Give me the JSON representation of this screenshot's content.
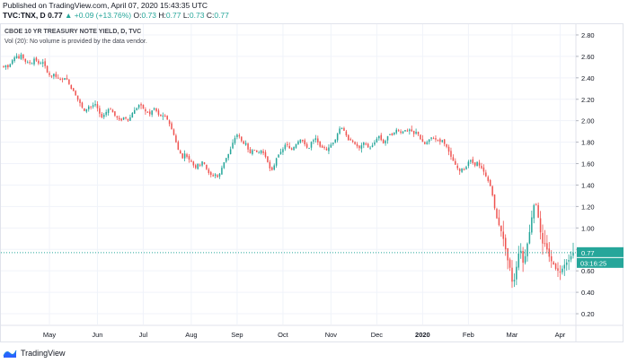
{
  "header": {
    "published": "Published on TradingView.com, April 07, 2020 15:43:35 UTC",
    "symbol_line": "TVC:TNX, D",
    "last": "0.77",
    "change": "+0.09 (+13.76%)",
    "o_label": "O:",
    "o_val": "0.73",
    "h_label": "H:",
    "h_val": "0.77",
    "l_label": "L:",
    "l_val": "0.73",
    "c_label": "C:",
    "c_val": "0.77"
  },
  "legend": {
    "title": "CBOE 10 YR TREASURY NOTE YIELD, D, TVC",
    "volume": "Vol (20): No volume is provided by the data vendor."
  },
  "price_scale": {
    "last_price_label": "0.77",
    "countdown_label": "03:16:25"
  },
  "footer": {
    "brand": "TradingView"
  },
  "colors": {
    "up": "#26a69a",
    "down": "#ef5350",
    "price_line": "#26a69a",
    "grid": "#f0f3fa",
    "axis_text": "#131722"
  },
  "chart_data": {
    "type": "candlestick",
    "title": "CBOE 10 YR TREASURY NOTE YIELD, D, TVC",
    "y_ticks": [
      0.2,
      0.4,
      0.6,
      0.8,
      1.0,
      1.2,
      1.4,
      1.6,
      1.8,
      2.0,
      2.2,
      2.4,
      2.6,
      2.8
    ],
    "y_tick_labels": [
      "0.20",
      "0.40",
      "0.60",
      "0.80",
      "1.00",
      "1.20",
      "1.40",
      "1.60",
      "1.80",
      "2.00",
      "2.20",
      "2.40",
      "2.60",
      "2.80"
    ],
    "ylim": [
      0.1,
      2.9
    ],
    "x_tick_labels": [
      "May",
      "Jun",
      "Jul",
      "Aug",
      "Sep",
      "Oct",
      "Nov",
      "Dec",
      "2020",
      "Feb",
      "Mar",
      "Apr"
    ],
    "x_tick_bar_index": [
      21,
      43,
      64,
      86,
      107,
      128,
      150,
      171,
      192,
      213,
      233,
      255
    ],
    "bars_total": 262,
    "last_value": 0.77,
    "grid": true,
    "path_closes": [
      2.5,
      2.52,
      2.49,
      2.55,
      2.58,
      2.61,
      2.58,
      2.62,
      2.57,
      2.54,
      2.55,
      2.52,
      2.58,
      2.56,
      2.53,
      2.54,
      2.55,
      2.46,
      2.43,
      2.41,
      2.44,
      2.4,
      2.4,
      2.38,
      2.4,
      2.39,
      2.34,
      2.29,
      2.27,
      2.21,
      2.18,
      2.13,
      2.09,
      2.11,
      2.14,
      2.12,
      2.17,
      2.13,
      2.07,
      2.03,
      2.06,
      2.09,
      2.12,
      2.09,
      2.05,
      2.03,
      2.01,
      2.0,
      2.05,
      1.99,
      2.02,
      2.07,
      2.1,
      2.12,
      2.16,
      2.13,
      2.09,
      2.08,
      2.06,
      2.1,
      2.12,
      2.07,
      2.04,
      2.05,
      2.04,
      2.01,
      1.96,
      1.9,
      1.84,
      1.74,
      1.7,
      1.65,
      1.7,
      1.65,
      1.63,
      1.6,
      1.55,
      1.6,
      1.58,
      1.63,
      1.58,
      1.52,
      1.5,
      1.48,
      1.5,
      1.47,
      1.52,
      1.59,
      1.64,
      1.68,
      1.73,
      1.8,
      1.85,
      1.88,
      1.83,
      1.78,
      1.8,
      1.73,
      1.69,
      1.74,
      1.72,
      1.69,
      1.73,
      1.7,
      1.66,
      1.6,
      1.53,
      1.55,
      1.64,
      1.68,
      1.71,
      1.74,
      1.79,
      1.76,
      1.72,
      1.75,
      1.78,
      1.81,
      1.83,
      1.8,
      1.76,
      1.73,
      1.8,
      1.82,
      1.84,
      1.78,
      1.74,
      1.76,
      1.72,
      1.75,
      1.78,
      1.8,
      1.84,
      1.92,
      1.94,
      1.91,
      1.86,
      1.81,
      1.82,
      1.79,
      1.77,
      1.74,
      1.77,
      1.8,
      1.77,
      1.74,
      1.76,
      1.79,
      1.83,
      1.86,
      1.81,
      1.78,
      1.84,
      1.88,
      1.86,
      1.89,
      1.92,
      1.9,
      1.88,
      1.92,
      1.9,
      1.92,
      1.9,
      1.87,
      1.91,
      1.84,
      1.81,
      1.78,
      1.8,
      1.83,
      1.85,
      1.82,
      1.83,
      1.8,
      1.82,
      1.78,
      1.75,
      1.69,
      1.64,
      1.6,
      1.56,
      1.53,
      1.56,
      1.53,
      1.6,
      1.64,
      1.61,
      1.58,
      1.62,
      1.57,
      1.55,
      1.5,
      1.45,
      1.4,
      1.3,
      1.16,
      1.06,
      1.0,
      0.93,
      0.82,
      0.7,
      0.62,
      0.46,
      0.55,
      0.73,
      0.82,
      0.67,
      0.74,
      0.88,
      1.0,
      1.18,
      1.26,
      1.12,
      0.96,
      0.84,
      0.86,
      0.76,
      0.7,
      0.67,
      0.62,
      0.6,
      0.58,
      0.64,
      0.67,
      0.69,
      0.73,
      0.77
    ]
  }
}
